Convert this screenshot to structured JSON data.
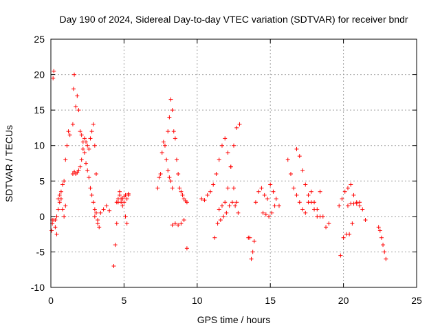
{
  "chart_data": {
    "type": "scatter",
    "title": "Day 190 of 2024, Sidereal Day-to-day VTEC variation (SDTVAR) for receiver bndr",
    "xlabel": "GPS time / hours",
    "ylabel": "SDTVAR / TECUs",
    "xlim": [
      0,
      25
    ],
    "ylim": [
      -10,
      25
    ],
    "xticks": [
      "0",
      "5",
      "10",
      "15",
      "20",
      "25"
    ],
    "yticks": [
      "-10",
      "-5",
      "0",
      "5",
      "10",
      "15",
      "20",
      "25"
    ],
    "grid": true,
    "marker": "+",
    "color": "#ff0000",
    "series": [
      {
        "name": "s1",
        "x": [
          0.05,
          0.1,
          0.15,
          0.2,
          0.3,
          0.4,
          0.5,
          0.6,
          0.7,
          0.8,
          0.9,
          1.0,
          1.1,
          1.2,
          1.3
        ],
        "y": [
          -2.0,
          -0.5,
          19.5,
          20.5,
          -1.5,
          -2.5,
          2.5,
          3.0,
          3.5,
          4.5,
          5.0,
          8.0,
          10.0,
          12.0,
          11.5
        ]
      },
      {
        "name": "s2",
        "x": [
          0.1,
          0.2,
          0.3,
          0.4,
          0.5,
          0.6,
          0.7,
          0.8,
          0.9,
          1.0
        ],
        "y": [
          -1.0,
          -0.5,
          -0.5,
          0.0,
          1.0,
          2.0,
          2.5,
          1.0,
          0.0,
          1.5
        ]
      },
      {
        "name": "s3",
        "x": [
          1.5,
          1.55,
          1.6,
          1.7,
          1.8,
          1.9,
          2.0,
          2.1,
          2.2,
          2.3,
          2.4,
          2.5,
          2.6,
          2.7,
          2.8,
          2.9,
          3.0,
          3.1,
          3.2,
          3.3
        ],
        "y": [
          13.0,
          18.0,
          20.0,
          15.5,
          17.0,
          15.0,
          12.0,
          11.5,
          10.5,
          9.0,
          7.5,
          6.5,
          5.5,
          4.0,
          3.0,
          2.0,
          1.0,
          0.5,
          -0.5,
          -1.5
        ]
      },
      {
        "name": "s4",
        "x": [
          1.5,
          1.6,
          1.7,
          1.8,
          1.9,
          2.0,
          2.1,
          2.2,
          2.3,
          2.4,
          2.5,
          2.6,
          2.7,
          2.8,
          2.9,
          3.0,
          3.1
        ],
        "y": [
          6.0,
          6.3,
          6.0,
          6.2,
          6.5,
          7.0,
          8.0,
          9.5,
          11.0,
          10.5,
          10.0,
          9.5,
          11.0,
          12.0,
          13.0,
          10.0,
          6.0
        ]
      },
      {
        "name": "s5",
        "x": [
          3.0,
          3.2,
          3.4,
          3.6,
          3.8,
          4.0
        ],
        "y": [
          0.0,
          -1.0,
          0.5,
          1.0,
          1.5,
          0.8
        ]
      },
      {
        "name": "s6",
        "x": [
          4.3,
          4.4,
          4.5,
          4.6,
          4.7,
          4.8,
          4.9,
          5.0,
          5.1,
          5.2,
          5.3
        ],
        "y": [
          -7.0,
          -4.0,
          -1.0,
          2.0,
          3.5,
          2.5,
          1.5,
          2.0,
          0.0,
          -1.0,
          3.0
        ]
      },
      {
        "name": "s7",
        "x": [
          4.5,
          4.6,
          4.7,
          4.8,
          4.9,
          5.0,
          5.1,
          5.2,
          5.3
        ],
        "y": [
          2.0,
          2.5,
          3.0,
          2.0,
          2.5,
          2.8,
          3.0,
          2.5,
          3.2
        ]
      },
      {
        "name": "s8",
        "x": [
          7.3,
          7.4,
          7.5,
          7.6,
          7.7,
          7.8,
          7.9,
          8.0,
          8.1,
          8.2,
          8.3
        ],
        "y": [
          4.0,
          5.5,
          6.0,
          9.0,
          10.5,
          10.0,
          8.0,
          6.5,
          5.5,
          5.0,
          4.0
        ]
      },
      {
        "name": "s9",
        "x": [
          8.0,
          8.1,
          8.2,
          8.3,
          8.4,
          8.5,
          8.6,
          8.7,
          8.8,
          8.9,
          9.0,
          9.1,
          9.2,
          9.3
        ],
        "y": [
          12.0,
          14.0,
          16.5,
          15.0,
          12.0,
          11.0,
          8.0,
          6.0,
          4.0,
          3.5,
          3.0,
          2.5,
          2.2,
          2.0
        ]
      },
      {
        "name": "s10",
        "x": [
          8.3,
          8.5,
          8.7,
          8.9,
          9.1,
          9.3
        ],
        "y": [
          -1.2,
          -1.0,
          -1.2,
          -1.0,
          -0.5,
          -4.5
        ]
      },
      {
        "name": "s11",
        "x": [
          10.3,
          10.5,
          10.7,
          10.9,
          11.1,
          11.3,
          11.5,
          11.7,
          11.9,
          12.1,
          12.3,
          12.5,
          12.7
        ],
        "y": [
          2.5,
          2.3,
          3.0,
          3.5,
          4.5,
          6.0,
          8.0,
          10.0,
          11.0,
          9.0,
          7.0,
          4.0,
          2.0
        ]
      },
      {
        "name": "s12",
        "x": [
          11.2,
          11.4,
          11.6,
          11.8,
          12.0,
          12.2,
          12.4,
          12.6,
          12.8
        ],
        "y": [
          -3.0,
          -1.0,
          -0.5,
          0.0,
          0.5,
          1.5,
          2.0,
          1.5,
          0.5
        ]
      },
      {
        "name": "s13",
        "x": [
          11.5,
          11.7,
          11.9,
          12.1,
          12.3,
          12.5,
          12.7,
          12.9
        ],
        "y": [
          1.0,
          1.5,
          2.0,
          4.0,
          7.0,
          10.0,
          12.5,
          13.0
        ]
      },
      {
        "name": "s14",
        "x": [
          13.5,
          13.6,
          13.7,
          13.8,
          13.9
        ],
        "y": [
          -3.0,
          -3.0,
          -6.0,
          -5.0,
          -3.5
        ]
      },
      {
        "name": "s15",
        "x": [
          14.0,
          14.2,
          14.4,
          14.6,
          14.8,
          15.0,
          15.2,
          15.4,
          15.6
        ],
        "y": [
          2.0,
          3.5,
          4.0,
          3.0,
          2.5,
          4.5,
          3.5,
          2.5,
          1.5
        ]
      },
      {
        "name": "s16",
        "x": [
          14.5,
          14.7,
          14.9,
          15.1,
          15.3
        ],
        "y": [
          0.5,
          0.3,
          0.0,
          0.5,
          1.5
        ]
      },
      {
        "name": "s17",
        "x": [
          16.2,
          16.4,
          16.6,
          16.8,
          17.0,
          17.2,
          17.4,
          17.6,
          17.8,
          18.0,
          18.2,
          18.4
        ],
        "y": [
          8.0,
          6.0,
          4.0,
          3.0,
          2.0,
          1.0,
          0.5,
          2.0,
          3.5,
          2.0,
          1.0,
          0.0
        ]
      },
      {
        "name": "s18",
        "x": [
          16.8,
          17.0,
          17.2,
          17.4,
          17.6,
          17.8,
          18.0,
          18.2
        ],
        "y": [
          9.5,
          8.5,
          6.5,
          4.5,
          3.0,
          2.0,
          1.0,
          0.0
        ]
      },
      {
        "name": "s19",
        "x": [
          18.4,
          18.6,
          18.8,
          19.0
        ],
        "y": [
          3.5,
          0.0,
          -1.5,
          -1.0
        ]
      },
      {
        "name": "s20",
        "x": [
          19.7,
          19.9,
          20.1,
          20.3,
          20.5,
          20.7,
          20.9,
          21.1
        ],
        "y": [
          1.5,
          2.5,
          3.5,
          4.0,
          4.5,
          3.0,
          2.0,
          1.5
        ]
      },
      {
        "name": "s21",
        "x": [
          19.8,
          20.0,
          20.2,
          20.4,
          20.6
        ],
        "y": [
          -5.5,
          -3.0,
          -2.5,
          -2.5,
          -1.0
        ]
      },
      {
        "name": "s22",
        "x": [
          20.3,
          20.5,
          20.7,
          20.9,
          21.1,
          21.3,
          21.5
        ],
        "y": [
          1.5,
          1.8,
          1.8,
          1.8,
          2.0,
          1.0,
          -0.5
        ]
      },
      {
        "name": "s23",
        "x": [
          22.4,
          22.5,
          22.6,
          22.7,
          22.8,
          22.9
        ],
        "y": [
          -1.5,
          -2.0,
          -3.0,
          -4.0,
          -5.0,
          -6.0
        ]
      }
    ]
  }
}
